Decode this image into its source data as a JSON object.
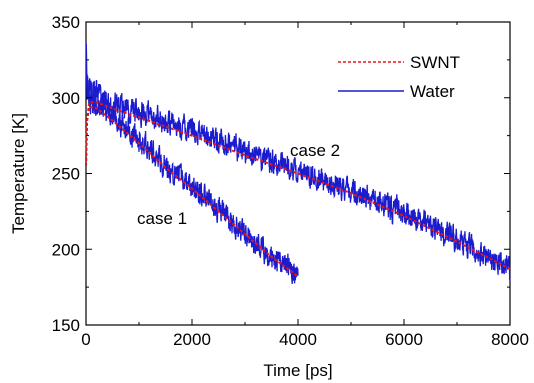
{
  "chart_data": {
    "type": "line",
    "title": "",
    "xlabel": "Time [ps]",
    "ylabel": "Temperature [K]",
    "xlim": [
      0,
      8000
    ],
    "ylim": [
      150,
      350
    ],
    "xticks": [
      0,
      2000,
      4000,
      6000,
      8000
    ],
    "yticks": [
      150,
      200,
      250,
      300,
      350
    ],
    "xtick_labels": [
      "0",
      "2000",
      "4000",
      "6000",
      "8000"
    ],
    "ytick_labels": [
      "150",
      "200",
      "250",
      "300",
      "350"
    ],
    "grid": false,
    "legend": {
      "placement": "top-right",
      "entries": [
        "SWNT",
        "Water"
      ]
    },
    "colors": {
      "SWNT": "#e8141b",
      "Water": "#1c1ccf"
    },
    "annotations": [
      {
        "text": "case 1",
        "x": 1050,
        "y": 210
      },
      {
        "text": "case 2",
        "x": 4300,
        "y": 248
      }
    ],
    "series": [
      {
        "name": "SWNT",
        "case": "case 1",
        "style": "dashed",
        "x": [
          0,
          20,
          60,
          200,
          500,
          1000,
          1500,
          2000,
          2500,
          3000,
          3500,
          4000
        ],
        "y": [
          255,
          285,
          294,
          293,
          285,
          270,
          254,
          240,
          225,
          210,
          195,
          182
        ]
      },
      {
        "name": "Water",
        "case": "case 1",
        "style": "solid",
        "x": [
          0,
          20,
          60,
          200,
          500,
          1000,
          1500,
          2000,
          2500,
          3000,
          3500,
          4000
        ],
        "y": [
          318,
          305,
          300,
          297,
          288,
          272,
          256,
          241,
          226,
          211,
          196,
          184
        ]
      },
      {
        "name": "SWNT",
        "case": "case 2",
        "style": "dashed",
        "x": [
          0,
          20,
          60,
          200,
          500,
          1000,
          2000,
          3000,
          4000,
          5000,
          6000,
          7000,
          8000
        ],
        "y": [
          255,
          285,
          297,
          297,
          293,
          287,
          275,
          262,
          250,
          237,
          222,
          205,
          187
        ]
      },
      {
        "name": "Water",
        "case": "case 2",
        "style": "solid",
        "x": [
          0,
          20,
          60,
          200,
          500,
          1000,
          2000,
          3000,
          4000,
          5000,
          6000,
          7000,
          8000
        ],
        "y": [
          330,
          310,
          303,
          301,
          297,
          290,
          278,
          265,
          252,
          239,
          224,
          207,
          188
        ]
      }
    ]
  }
}
